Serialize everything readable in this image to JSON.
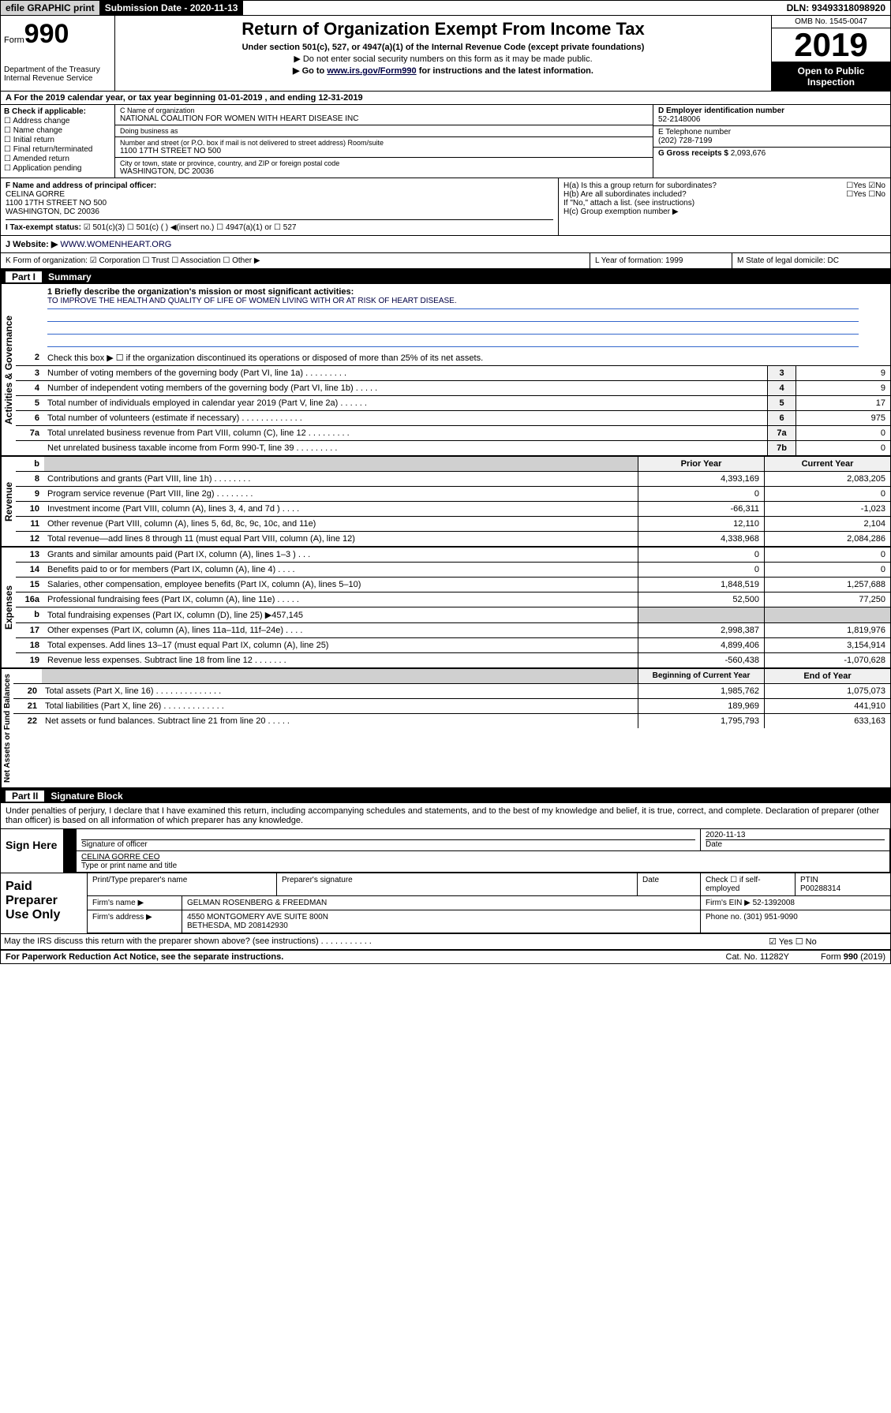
{
  "topbar": {
    "efile": "efile GRAPHIC print",
    "submission": "Submission Date - 2020-11-13",
    "dln": "DLN: 93493318098920"
  },
  "header": {
    "form_label": "Form",
    "form_num": "990",
    "dept": "Department of the Treasury\nInternal Revenue Service",
    "title": "Return of Organization Exempt From Income Tax",
    "sub1": "Under section 501(c), 527, or 4947(a)(1) of the Internal Revenue Code (except private foundations)",
    "sub2": "▶ Do not enter social security numbers on this form as it may be made public.",
    "sub3_pre": "▶ Go to ",
    "sub3_link": "www.irs.gov/Form990",
    "sub3_post": " for instructions and the latest information.",
    "omb": "OMB No. 1545-0047",
    "year": "2019",
    "inspect": "Open to Public Inspection"
  },
  "period": "A For the 2019 calendar year, or tax year beginning 01-01-2019    , and ending 12-31-2019",
  "checkB": {
    "label": "B Check if applicable:",
    "opts": [
      "☐ Address change",
      "☐ Name change",
      "☐ Initial return",
      "☐ Final return/terminated",
      "☐ Amended return",
      "☐ Application pending"
    ]
  },
  "org": {
    "name_lbl": "C Name of organization",
    "name": "NATIONAL COALITION FOR WOMEN WITH HEART DISEASE INC",
    "dba_lbl": "Doing business as",
    "dba": "",
    "addr_lbl": "Number and street (or P.O. box if mail is not delivered to street address)    Room/suite",
    "addr": "1100 17TH STREET NO 500",
    "city_lbl": "City or town, state or province, country, and ZIP or foreign postal code",
    "city": "WASHINGTON, DC  20036"
  },
  "ein": {
    "lbl": "D Employer identification number",
    "val": "52-2148006",
    "phone_lbl": "E Telephone number",
    "phone": "(202) 728-7199",
    "gross_lbl": "G Gross receipts $",
    "gross": "2,093,676"
  },
  "officer": {
    "lbl": "F  Name and address of principal officer:",
    "name": "CELINA GORRE",
    "addr": "1100 17TH STREET NO 500\nWASHINGTON, DC  20036"
  },
  "H": {
    "a": "H(a)  Is this a group return for subordinates?",
    "a_ans": "☐Yes ☑No",
    "b": "H(b)  Are all subordinates included?",
    "b_ans": "☐Yes ☐No",
    "b_note": "If \"No,\" attach a list. (see instructions)",
    "c": "H(c)  Group exemption number ▶"
  },
  "I": {
    "lbl": "I    Tax-exempt status:",
    "opts": "☑ 501(c)(3)   ☐ 501(c) (  ) ◀(insert no.)    ☐ 4947(a)(1) or   ☐ 527"
  },
  "J": {
    "lbl": "J   Website: ▶",
    "val": "WWW.WOMENHEART.ORG"
  },
  "K": "K Form of organization:  ☑ Corporation  ☐ Trust  ☐ Association  ☐ Other ▶",
  "L": "L Year of formation: 1999",
  "M": "M State of legal domicile: DC",
  "part1": {
    "num": "Part I",
    "title": "Summary"
  },
  "gov": {
    "label": "Activities & Governance",
    "l1_lbl": "1  Briefly describe the organization's mission or most significant activities:",
    "l1_val": "TO IMPROVE THE HEALTH AND QUALITY OF LIFE OF WOMEN LIVING WITH OR AT RISK OF HEART DISEASE.",
    "l2": "Check this box ▶ ☐  if the organization discontinued its operations or disposed of more than 25% of its net assets.",
    "rows": [
      {
        "n": "3",
        "t": "Number of voting members of the governing body (Part VI, line 1a)  .  .  .  .  .  .  .  .  .",
        "a": "3",
        "v": "9"
      },
      {
        "n": "4",
        "t": "Number of independent voting members of the governing body (Part VI, line 1b)  .  .  .  .  .",
        "a": "4",
        "v": "9"
      },
      {
        "n": "5",
        "t": "Total number of individuals employed in calendar year 2019 (Part V, line 2a)  .  .  .  .  .  .",
        "a": "5",
        "v": "17"
      },
      {
        "n": "6",
        "t": "Total number of volunteers (estimate if necessary)  .  .  .  .  .  .  .  .  .  .  .  .  .",
        "a": "6",
        "v": "975"
      },
      {
        "n": "7a",
        "t": "Total unrelated business revenue from Part VIII, column (C), line 12  .  .  .  .  .  .  .  .  .",
        "a": "7a",
        "v": "0"
      },
      {
        "n": "",
        "t": "Net unrelated business taxable income from Form 990-T, line 39   .  .  .  .  .  .  .  .  .",
        "a": "7b",
        "v": "0"
      }
    ]
  },
  "rev": {
    "label": "Revenue",
    "hdr_py": "Prior Year",
    "hdr_cy": "Current Year",
    "rows": [
      {
        "n": "8",
        "t": "Contributions and grants (Part VIII, line 1h)  .  .  .  .  .  .  .  .",
        "py": "4,393,169",
        "cy": "2,083,205"
      },
      {
        "n": "9",
        "t": "Program service revenue (Part VIII, line 2g)  .  .  .  .  .  .  .  .",
        "py": "0",
        "cy": "0"
      },
      {
        "n": "10",
        "t": "Investment income (Part VIII, column (A), lines 3, 4, and 7d )  .  .  .  .",
        "py": "-66,311",
        "cy": "-1,023"
      },
      {
        "n": "11",
        "t": "Other revenue (Part VIII, column (A), lines 5, 6d, 8c, 9c, 10c, and 11e)",
        "py": "12,110",
        "cy": "2,104"
      },
      {
        "n": "12",
        "t": "Total revenue—add lines 8 through 11 (must equal Part VIII, column (A), line 12)",
        "py": "4,338,968",
        "cy": "2,084,286"
      }
    ]
  },
  "exp": {
    "label": "Expenses",
    "rows": [
      {
        "n": "13",
        "t": "Grants and similar amounts paid (Part IX, column (A), lines 1–3 )  .  .  .",
        "py": "0",
        "cy": "0"
      },
      {
        "n": "14",
        "t": "Benefits paid to or for members (Part IX, column (A), line 4)  .  .  .  .",
        "py": "0",
        "cy": "0"
      },
      {
        "n": "15",
        "t": "Salaries, other compensation, employee benefits (Part IX, column (A), lines 5–10)",
        "py": "1,848,519",
        "cy": "1,257,688"
      },
      {
        "n": "16a",
        "t": "Professional fundraising fees (Part IX, column (A), line 11e)  .  .  .  .  .",
        "py": "52,500",
        "cy": "77,250"
      },
      {
        "n": "b",
        "t": "Total fundraising expenses (Part IX, column (D), line 25) ▶457,145",
        "py": "",
        "cy": "",
        "shade": true
      },
      {
        "n": "17",
        "t": "Other expenses (Part IX, column (A), lines 11a–11d, 11f–24e)  .  .  .  .",
        "py": "2,998,387",
        "cy": "1,819,976"
      },
      {
        "n": "18",
        "t": "Total expenses. Add lines 13–17 (must equal Part IX, column (A), line 25)",
        "py": "4,899,406",
        "cy": "3,154,914"
      },
      {
        "n": "19",
        "t": "Revenue less expenses. Subtract line 18 from line 12  .  .  .  .  .  .  .",
        "py": "-560,438",
        "cy": "-1,070,628"
      }
    ]
  },
  "net": {
    "label": "Net Assets or Fund Balances",
    "hdr_py": "Beginning of Current Year",
    "hdr_cy": "End of Year",
    "rows": [
      {
        "n": "20",
        "t": "Total assets (Part X, line 16)  .  .  .  .  .  .  .  .  .  .  .  .  .  .",
        "py": "1,985,762",
        "cy": "1,075,073"
      },
      {
        "n": "21",
        "t": "Total liabilities (Part X, line 26)  .  .  .  .  .  .  .  .  .  .  .  .  .",
        "py": "189,969",
        "cy": "441,910"
      },
      {
        "n": "22",
        "t": "Net assets or fund balances. Subtract line 21 from line 20  .  .  .  .  .",
        "py": "1,795,793",
        "cy": "633,163"
      }
    ]
  },
  "part2": {
    "num": "Part II",
    "title": "Signature Block"
  },
  "sig": {
    "decl": "Under penalties of perjury, I declare that I have examined this return, including accompanying schedules and statements, and to the best of my knowledge and belief, it is true, correct, and complete. Declaration of preparer (other than officer) is based on all information of which preparer has any knowledge.",
    "sign_here": "Sign Here",
    "sig_officer": "Signature of officer",
    "date": "2020-11-13",
    "date_lbl": "Date",
    "name": "CELINA GORRE CEO",
    "name_lbl": "Type or print name and title"
  },
  "prep": {
    "lbl": "Paid Preparer Use Only",
    "h1": "Print/Type preparer's name",
    "h2": "Preparer's signature",
    "h3": "Date",
    "h4": "Check ☐ if self-employed",
    "h5_lbl": "PTIN",
    "h5": "P00288314",
    "firm_lbl": "Firm's name     ▶",
    "firm": "GELMAN ROSENBERG & FREEDMAN",
    "ein_lbl": "Firm's EIN ▶",
    "ein": "52-1392008",
    "addr_lbl": "Firm's address ▶",
    "addr": "4550 MONTGOMERY AVE SUITE 800N\nBETHESDA, MD  208142930",
    "phone_lbl": "Phone no.",
    "phone": "(301) 951-9090"
  },
  "discuss": "May the IRS discuss this return with the preparer shown above? (see instructions)   .  .  .  .  .  .  .  .  .  .  .",
  "discuss_ans": "☑ Yes   ☐ No",
  "footer": {
    "left": "For Paperwork Reduction Act Notice, see the separate instructions.",
    "mid": "Cat. No. 11282Y",
    "right": "Form 990 (2019)"
  }
}
